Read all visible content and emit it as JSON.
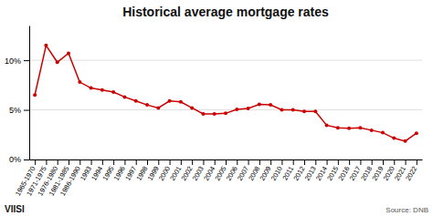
{
  "chart_data": {
    "type": "line",
    "title": "Historical average mortgage rates",
    "categories": [
      "1965-1970",
      "1971-1975",
      "1976-1980",
      "1981-1985",
      "1986-1990",
      "1993",
      "1994",
      "1995",
      "1996",
      "1997",
      "1998",
      "1999",
      "2000",
      "2001",
      "2002",
      "2003",
      "2004",
      "2005",
      "2006",
      "2007",
      "2008",
      "2009",
      "2010",
      "2011",
      "2012",
      "2013",
      "2014",
      "2015",
      "2016",
      "2017",
      "2018",
      "2019",
      "2020",
      "2021",
      "2022"
    ],
    "values": [
      6.5,
      11.5,
      9.8,
      10.7,
      7.8,
      7.2,
      7.0,
      6.8,
      6.3,
      5.9,
      5.5,
      5.2,
      5.9,
      5.8,
      5.2,
      4.6,
      4.6,
      4.65,
      5.05,
      5.15,
      5.55,
      5.5,
      5.0,
      5.0,
      4.85,
      4.85,
      3.45,
      3.2,
      3.15,
      3.2,
      2.95,
      2.7,
      2.15,
      1.85,
      2.65
    ],
    "color": "#cc0000",
    "marker": "circle",
    "ylim": [
      0,
      13.5
    ],
    "yticks": [
      {
        "value": 0,
        "label": "0%"
      },
      {
        "value": 5,
        "label": "5%"
      },
      {
        "value": 10,
        "label": "10%"
      }
    ],
    "grid": true,
    "annotations": [
      "VIISI",
      "Source: DNB"
    ]
  }
}
